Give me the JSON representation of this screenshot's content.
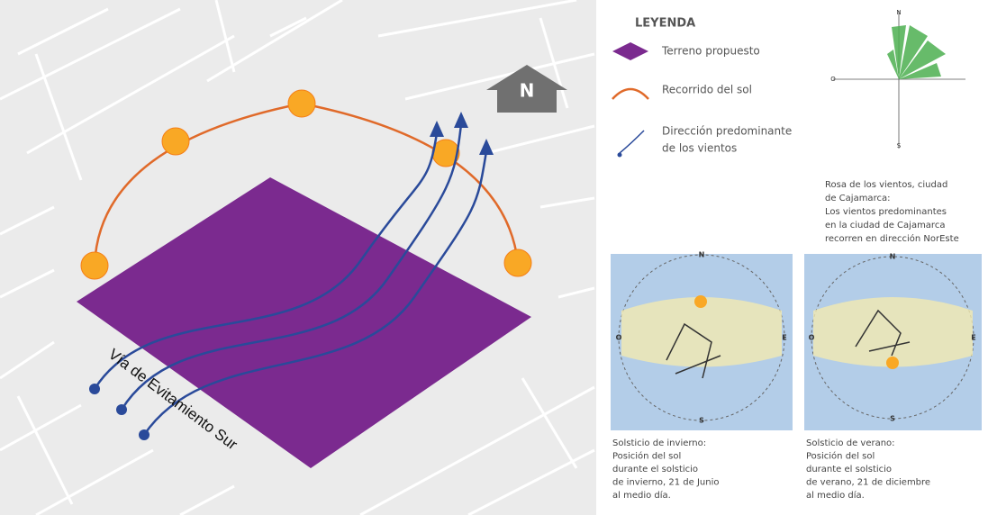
{
  "north_label": "N",
  "road_label": "Vía de Evitamiento Sur",
  "legend": {
    "title": "LEYENDA",
    "items": [
      {
        "label": [
          "Terreno propuesto"
        ]
      },
      {
        "label": [
          "Recorrido del sol"
        ]
      },
      {
        "label": [
          "Dirección predominante",
          "de los vientos"
        ]
      }
    ]
  },
  "cardinal": {
    "n": "N",
    "s": "S",
    "o": "O",
    "e": "E"
  },
  "wind_rose": {
    "caption": [
      "Rosa de los vientos, ciudad",
      "de Cajamarca:",
      "Los vientos predominantes",
      "en la ciudad de Cajamarca",
      "recorren en dirección NorEste"
    ]
  },
  "sun_charts": [
    {
      "caption": [
        "Solsticio de invierno:",
        "Posición del sol",
        "durante el solsticio",
        "de invierno, 21 de Junio",
        "al medio día."
      ]
    },
    {
      "caption": [
        "Solsticio de verano:",
        "Posición del sol",
        "durante el solsticio",
        "de verano, 21 de diciembre",
        "al medio día."
      ]
    }
  ]
}
